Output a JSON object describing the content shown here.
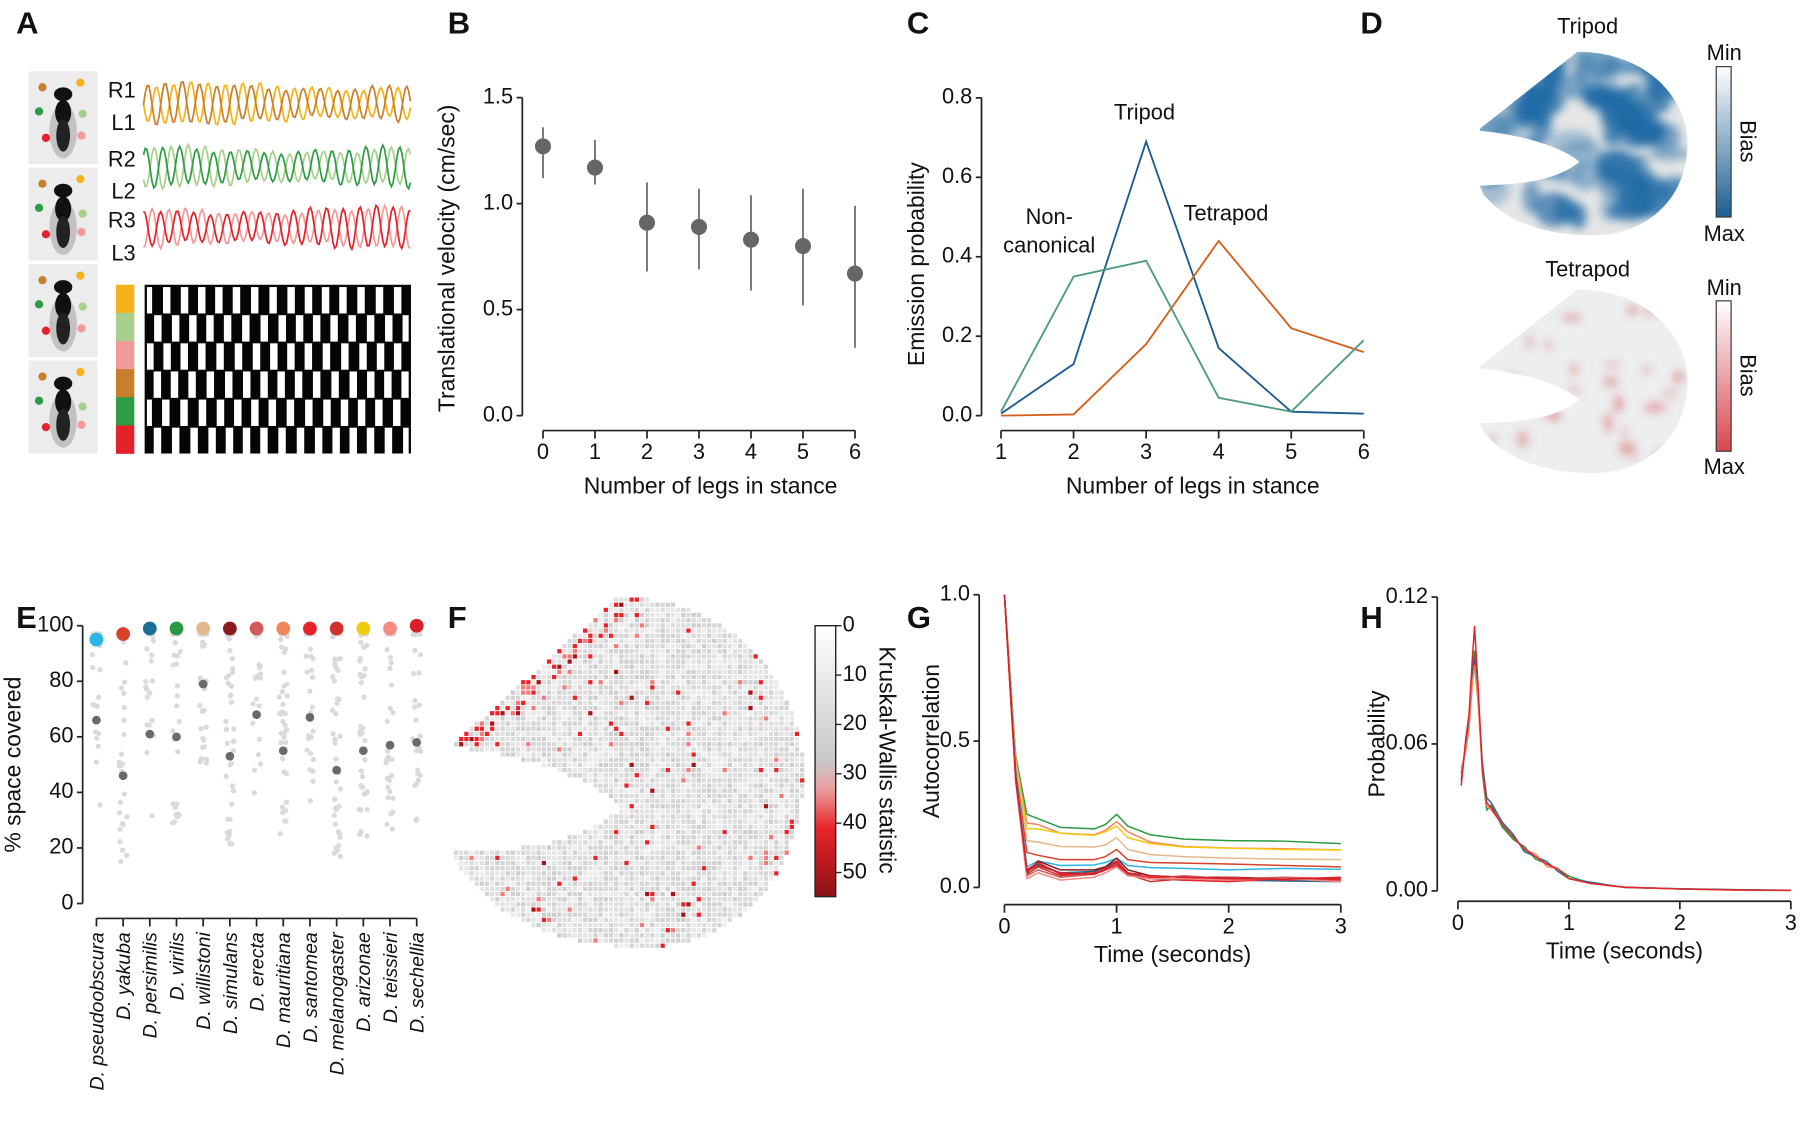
{
  "panel_labels": [
    "A",
    "B",
    "C",
    "D",
    "E",
    "F",
    "G",
    "H"
  ],
  "panelA": {
    "legs": [
      {
        "label": "R1",
        "color": "#f5b21b"
      },
      {
        "label": "L1",
        "color": "#c87f2c"
      },
      {
        "label": "R2",
        "color": "#a8d08d"
      },
      {
        "label": "L2",
        "color": "#2e9c45"
      },
      {
        "label": "R3",
        "color": "#f19a9a"
      },
      {
        "label": "L3",
        "color": "#e3222b"
      }
    ],
    "stance_rows": [
      "R1",
      "R2",
      "R3",
      "L1",
      "L2",
      "L3"
    ]
  },
  "chart_data": [
    {
      "panel": "B",
      "type": "scatter",
      "xlabel": "Number of legs in stance",
      "ylabel": "Translational velocity (cm/sec)",
      "categories": [
        "0",
        "1",
        "2",
        "3",
        "4",
        "5",
        "6"
      ],
      "values": [
        1.27,
        1.17,
        0.91,
        0.89,
        0.83,
        0.8,
        0.67
      ],
      "error_low": [
        1.12,
        1.09,
        0.68,
        0.69,
        0.59,
        0.52,
        0.32
      ],
      "error_high": [
        1.36,
        1.3,
        1.1,
        1.07,
        1.04,
        1.07,
        0.99
      ],
      "ylim": [
        0,
        1.5
      ],
      "yticks": [
        {
          "v": 0,
          "label": "0.0"
        },
        {
          "v": 0.5,
          "label": "0.5"
        },
        {
          "v": 1.0,
          "label": "1.0"
        },
        {
          "v": 1.5,
          "label": "1.5"
        }
      ],
      "point_color": "#666666"
    },
    {
      "panel": "C",
      "type": "line",
      "xlabel": "Number of legs in stance",
      "ylabel": "Emission probability",
      "x": [
        1,
        2,
        3,
        4,
        5,
        6
      ],
      "ylim": [
        0,
        0.8
      ],
      "yticks": [
        {
          "v": 0,
          "label": "0.0"
        },
        {
          "v": 0.2,
          "label": "0.2"
        },
        {
          "v": 0.4,
          "label": "0.4"
        },
        {
          "v": 0.6,
          "label": "0.6"
        },
        {
          "v": 0.8,
          "label": "0.8"
        }
      ],
      "series": [
        {
          "name": "Tripod",
          "label_lines": [
            "Tripod"
          ],
          "color": "#1a5a8f",
          "values": [
            0.005,
            0.13,
            0.69,
            0.17,
            0.01,
            0.005
          ]
        },
        {
          "name": "Tetrapod",
          "label_lines": [
            "Tetrapod"
          ],
          "color": "#d45f1a",
          "values": [
            0.0,
            0.003,
            0.18,
            0.44,
            0.22,
            0.16
          ]
        },
        {
          "name": "Non-canonical",
          "label_lines": [
            "Non-",
            "canonical"
          ],
          "color": "#4c9b80",
          "values": [
            0.01,
            0.35,
            0.39,
            0.045,
            0.01,
            0.19
          ]
        }
      ]
    },
    {
      "panel": "D",
      "type": "heatmap",
      "maps": [
        {
          "title": "Tripod",
          "color": "#1f6aa5",
          "colorbar_min": "Min",
          "colorbar_max": "Max",
          "colorbar_label": "Bias"
        },
        {
          "title": "Tetrapod",
          "color": "#d9534f",
          "title_color": "#d45f1a",
          "colorbar_min": "Min",
          "colorbar_max": "Max",
          "colorbar_label": "Bias"
        }
      ]
    },
    {
      "panel": "E",
      "type": "scatter",
      "ylabel": "% space covered",
      "ylim": [
        0,
        100
      ],
      "yticks": [
        {
          "v": 0,
          "label": "0"
        },
        {
          "v": 20,
          "label": "20"
        },
        {
          "v": 40,
          "label": "40"
        },
        {
          "v": 60,
          "label": "60"
        },
        {
          "v": 80,
          "label": "80"
        },
        {
          "v": 100,
          "label": "100"
        }
      ],
      "categories": [
        "D. pseudoobscura",
        "D. yakuba",
        "D. persimilis",
        "D. virilis",
        "D. willistoni",
        "D. simulans",
        "D. erecta",
        "D. mauritiana",
        "D. santomea",
        "D. melanogaster",
        "D. arizonae",
        "D. teissieri",
        "D. sechellia"
      ],
      "colors": [
        "#29b5e8",
        "#d9412b",
        "#1a6e94",
        "#2a9a42",
        "#e2b98a",
        "#8b1a1a",
        "#d25a5a",
        "#f5855a",
        "#e8202a",
        "#d03030",
        "#f2cb10",
        "#f58a80",
        "#d6202a"
      ],
      "total_coverage": [
        95,
        97,
        99,
        99,
        99,
        99,
        99,
        99,
        99,
        99,
        99,
        99,
        100
      ],
      "median_individual": [
        66,
        46,
        61,
        60,
        79,
        53,
        68,
        55,
        67,
        48,
        55,
        57,
        58
      ]
    },
    {
      "panel": "F",
      "type": "heatmap",
      "colorbar_label": "Kruskal-Wallis statistic",
      "colorbar_range": [
        0,
        55
      ],
      "colorbar_ticks": [
        {
          "v": 0,
          "label": "0"
        },
        {
          "v": 10,
          "label": "10"
        },
        {
          "v": 20,
          "label": "20"
        },
        {
          "v": 30,
          "label": "30"
        },
        {
          "v": 40,
          "label": "40"
        },
        {
          "v": 50,
          "label": "50"
        }
      ]
    },
    {
      "panel": "G",
      "type": "line",
      "xlabel": "Time (seconds)",
      "ylabel": "Autocorrelation",
      "xlim": [
        0,
        3
      ],
      "ylim": [
        0,
        1
      ],
      "xticks": [
        {
          "v": 0,
          "label": "0"
        },
        {
          "v": 1,
          "label": "1"
        },
        {
          "v": 2,
          "label": "2"
        },
        {
          "v": 3,
          "label": "3"
        }
      ],
      "yticks": [
        {
          "v": 0,
          "label": "0.0"
        },
        {
          "v": 0.5,
          "label": "0.5"
        },
        {
          "v": 1.0,
          "label": "1.0"
        }
      ],
      "x": [
        0,
        0.1,
        0.2,
        0.3,
        0.5,
        0.8,
        0.9,
        1.0,
        1.1,
        1.3,
        1.6,
        2,
        2.5,
        3
      ],
      "series": [
        {
          "name": "D. virilis",
          "color": "#2a9a42",
          "values": [
            1.0,
            0.45,
            0.25,
            0.235,
            0.205,
            0.2,
            0.215,
            0.25,
            0.21,
            0.18,
            0.165,
            0.16,
            0.158,
            0.15
          ]
        },
        {
          "name": "D. mauritiana",
          "color": "#f5855a",
          "values": [
            1.0,
            0.44,
            0.22,
            0.215,
            0.185,
            0.18,
            0.195,
            0.225,
            0.19,
            0.155,
            0.14,
            0.135,
            0.132,
            0.128
          ]
        },
        {
          "name": "D. arizonae",
          "color": "#f2cb10",
          "values": [
            1.0,
            0.43,
            0.2,
            0.2,
            0.185,
            0.178,
            0.19,
            0.21,
            0.17,
            0.15,
            0.138,
            0.134,
            0.13,
            0.128
          ]
        },
        {
          "name": "D. willistoni",
          "color": "#e2b98a",
          "values": [
            1.0,
            0.42,
            0.16,
            0.155,
            0.14,
            0.138,
            0.145,
            0.17,
            0.13,
            0.112,
            0.105,
            0.1,
            0.097,
            0.095
          ]
        },
        {
          "name": "D. yakuba",
          "color": "#d9412b",
          "values": [
            1.0,
            0.4,
            0.12,
            0.11,
            0.095,
            0.095,
            0.105,
            0.13,
            0.095,
            0.085,
            0.083,
            0.08,
            0.075,
            0.07
          ]
        },
        {
          "name": "D. pseudoobscura",
          "color": "#29b5e8",
          "values": [
            1.0,
            0.4,
            0.07,
            0.09,
            0.075,
            0.077,
            0.085,
            0.1,
            0.075,
            0.068,
            0.065,
            0.06,
            0.065,
            0.062
          ]
        },
        {
          "name": "D. persimilis",
          "color": "#1a6e94",
          "values": [
            1.0,
            0.38,
            0.06,
            0.08,
            0.05,
            0.055,
            0.07,
            0.09,
            0.05,
            0.03,
            0.025,
            0.025,
            0.022,
            0.02
          ]
        },
        {
          "name": "D. simulans",
          "color": "#8b1a1a",
          "values": [
            1.0,
            0.38,
            0.05,
            0.09,
            0.06,
            0.06,
            0.07,
            0.1,
            0.06,
            0.04,
            0.035,
            0.035,
            0.03,
            0.03
          ]
        },
        {
          "name": "D. erecta",
          "color": "#d25a5a",
          "values": [
            1.0,
            0.37,
            0.04,
            0.06,
            0.035,
            0.045,
            0.06,
            0.08,
            0.045,
            0.03,
            0.04,
            0.03,
            0.035,
            0.03
          ]
        },
        {
          "name": "D. santomea",
          "color": "#e8202a",
          "values": [
            1.0,
            0.37,
            0.06,
            0.085,
            0.045,
            0.05,
            0.065,
            0.085,
            0.04,
            0.035,
            0.025,
            0.02,
            0.03,
            0.025
          ]
        },
        {
          "name": "D. melanogaster",
          "color": "#d03030",
          "values": [
            1.0,
            0.36,
            0.045,
            0.07,
            0.04,
            0.05,
            0.06,
            0.075,
            0.045,
            0.02,
            0.03,
            0.035,
            0.025,
            0.03
          ]
        },
        {
          "name": "D. teissieri",
          "color": "#f58a80",
          "values": [
            1.0,
            0.36,
            0.03,
            0.05,
            0.025,
            0.035,
            0.05,
            0.07,
            0.04,
            0.03,
            0.03,
            0.025,
            0.03,
            0.02
          ]
        },
        {
          "name": "D. sechellia",
          "color": "#d6202a",
          "values": [
            1.0,
            0.37,
            0.055,
            0.075,
            0.05,
            0.045,
            0.06,
            0.09,
            0.05,
            0.04,
            0.035,
            0.03,
            0.028,
            0.035
          ]
        }
      ]
    },
    {
      "panel": "H",
      "type": "line",
      "xlabel": "Time (seconds)",
      "ylabel": "Probability",
      "xlim": [
        0,
        3
      ],
      "ylim": [
        0,
        0.12
      ],
      "xticks": [
        {
          "v": 0,
          "label": "0"
        },
        {
          "v": 1,
          "label": "1"
        },
        {
          "v": 2,
          "label": "2"
        },
        {
          "v": 3,
          "label": "3"
        }
      ],
      "yticks": [
        {
          "v": 0,
          "label": "0.00"
        },
        {
          "v": 0.06,
          "label": "0.06"
        },
        {
          "v": 0.12,
          "label": "0.12"
        }
      ],
      "x": [
        0.03,
        0.07,
        0.1,
        0.13,
        0.15,
        0.18,
        0.22,
        0.26,
        0.3,
        0.4,
        0.5,
        0.6,
        0.7,
        0.8,
        0.9,
        1.0,
        1.2,
        1.5,
        2,
        2.5,
        3
      ],
      "series": [
        {
          "name": "green",
          "color": "#2a9a42",
          "values": [
            0.048,
            0.058,
            0.07,
            0.09,
            0.098,
            0.083,
            0.048,
            0.033,
            0.035,
            0.026,
            0.021,
            0.018,
            0.013,
            0.011,
            0.009,
            0.006,
            0.003,
            0.0016,
            0.0007,
            0.0004,
            0.0002
          ]
        },
        {
          "name": "blue",
          "color": "#1a6e94",
          "values": [
            0.045,
            0.06,
            0.068,
            0.088,
            0.095,
            0.08,
            0.052,
            0.038,
            0.036,
            0.028,
            0.023,
            0.016,
            0.014,
            0.012,
            0.008,
            0.005,
            0.0035,
            0.0014,
            0.0009,
            0.0005,
            0.0003
          ]
        },
        {
          "name": "orange",
          "color": "#f5855a",
          "values": [
            0.05,
            0.057,
            0.066,
            0.085,
            0.092,
            0.078,
            0.049,
            0.035,
            0.033,
            0.027,
            0.022,
            0.017,
            0.015,
            0.01,
            0.009,
            0.005,
            0.003,
            0.0015,
            0.0008,
            0.0003,
            0.0002
          ]
        },
        {
          "name": "red",
          "color": "#e3222b",
          "values": [
            0.043,
            0.062,
            0.072,
            0.095,
            0.108,
            0.085,
            0.05,
            0.036,
            0.034,
            0.027,
            0.022,
            0.017,
            0.014,
            0.011,
            0.009,
            0.005,
            0.003,
            0.0015,
            0.0008,
            0.0004,
            0.0002
          ]
        }
      ]
    }
  ]
}
